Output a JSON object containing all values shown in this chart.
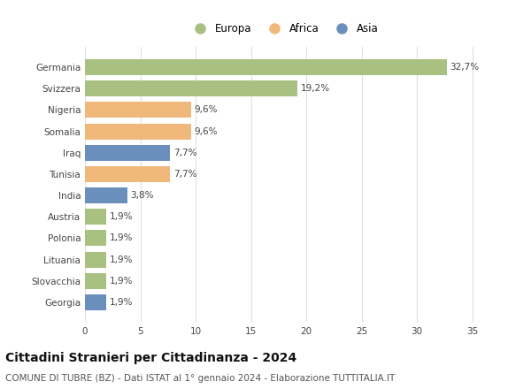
{
  "categories": [
    "Germania",
    "Svizzera",
    "Nigeria",
    "Somalia",
    "Iraq",
    "Tunisia",
    "India",
    "Austria",
    "Polonia",
    "Lituania",
    "Slovacchia",
    "Georgia"
  ],
  "values": [
    32.7,
    19.2,
    9.6,
    9.6,
    7.7,
    7.7,
    3.8,
    1.9,
    1.9,
    1.9,
    1.9,
    1.9
  ],
  "labels": [
    "32,7%",
    "19,2%",
    "9,6%",
    "9,6%",
    "7,7%",
    "7,7%",
    "3,8%",
    "1,9%",
    "1,9%",
    "1,9%",
    "1,9%",
    "1,9%"
  ],
  "colors": [
    "#a8c080",
    "#a8c080",
    "#f0b87a",
    "#f0b87a",
    "#6b8fbd",
    "#f0b87a",
    "#6b8fbd",
    "#a8c080",
    "#a8c080",
    "#a8c080",
    "#a8c080",
    "#6b8fbd"
  ],
  "continent_colors": {
    "Europa": "#a8c080",
    "Africa": "#f0b87a",
    "Asia": "#6b8fbd"
  },
  "legend_labels": [
    "Europa",
    "Africa",
    "Asia"
  ],
  "title": "Cittadini Stranieri per Cittadinanza - 2024",
  "subtitle": "COMUNE DI TUBRE (BZ) - Dati ISTAT al 1° gennaio 2024 - Elaborazione TUTTITALIA.IT",
  "xlim": [
    0,
    36
  ],
  "xticks": [
    0,
    5,
    10,
    15,
    20,
    25,
    30,
    35
  ],
  "bg_color": "#ffffff",
  "grid_color": "#e0e0e0",
  "title_fontsize": 10,
  "subtitle_fontsize": 7.5,
  "label_fontsize": 7.5,
  "tick_fontsize": 7.5,
  "bar_height": 0.75
}
